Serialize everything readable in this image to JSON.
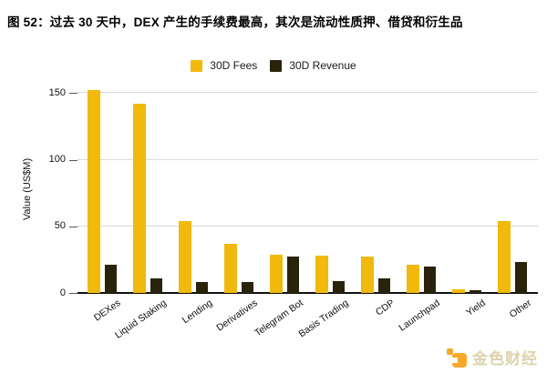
{
  "title": "图 52：过去 30 天中，DEX 产生的手续费最高，其次是流动性质押、借贷和衍生品",
  "watermark": {
    "text": "金色财经"
  },
  "chart_data": {
    "type": "bar",
    "title": "图 52：过去 30 天中，DEX 产生的手续费最高，其次是流动性质押、借贷和衍生品",
    "categories": [
      "DEXes",
      "Liquid Staking",
      "Lending",
      "Derivatives",
      "Telegram Bot",
      "Basis Trading",
      "CDP",
      "Launchpad",
      "Yield",
      "Other"
    ],
    "series": [
      {
        "name": "30D Fees",
        "color": "#F0B90B",
        "values": [
          152,
          142,
          54,
          37,
          29,
          28,
          27,
          21,
          3,
          54
        ]
      },
      {
        "name": "30D Revenue",
        "color": "#2A230C",
        "values": [
          21,
          11,
          8,
          8,
          27,
          9,
          11,
          20,
          2,
          23
        ]
      }
    ],
    "xlabel": "",
    "ylabel": "Value (US$M)",
    "yticks": [
      0,
      50,
      100,
      150
    ],
    "ylim": [
      0,
      155
    ],
    "grid": true,
    "legend_position": "top-center",
    "gridline_color": "#d9d9d9",
    "axis_line_color": "#111111"
  }
}
